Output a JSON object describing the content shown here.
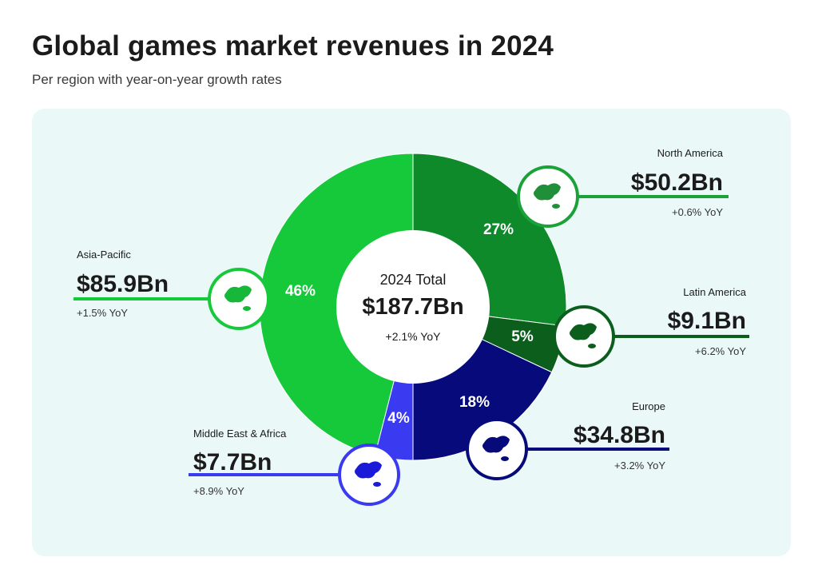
{
  "header": {
    "title": "Global games market revenues in 2024",
    "subtitle": "Per region with year-on-year growth rates"
  },
  "chart_data": {
    "type": "pie",
    "title": "Global games market revenues in 2024",
    "subtitle": "Per region with year-on-year growth rates",
    "center": {
      "label": "2024 Total",
      "value": "$187.7Bn",
      "growth": "+2.1% YoY"
    },
    "slices": [
      {
        "region": "North America",
        "percent": 27,
        "percent_label": "27%",
        "value": 50.2,
        "value_label": "$50.2Bn",
        "growth": "+0.6% YoY",
        "color": "#0f8a2a",
        "icon": "north-america-map-icon"
      },
      {
        "region": "Latin America",
        "percent": 5,
        "percent_label": "5%",
        "value": 9.1,
        "value_label": "$9.1Bn",
        "growth": "+6.2% YoY",
        "color": "#0b5e1c",
        "icon": "latin-america-map-icon"
      },
      {
        "region": "Europe",
        "percent": 18,
        "percent_label": "18%",
        "value": 34.8,
        "value_label": "$34.8Bn",
        "growth": "+3.2% YoY",
        "color": "#060a7a",
        "icon": "europe-map-icon"
      },
      {
        "region": "Middle East & Africa",
        "percent": 4,
        "percent_label": "4%",
        "value": 7.7,
        "value_label": "$7.7Bn",
        "growth": "+8.9% YoY",
        "color": "#3a3af0",
        "icon": "africa-map-icon"
      },
      {
        "region": "Asia-Pacific",
        "percent": 46,
        "percent_label": "46%",
        "value": 85.9,
        "value_label": "$85.9Bn",
        "growth": "+1.5% YoY",
        "color": "#16c93a",
        "icon": "asia-pacific-map-icon"
      }
    ]
  }
}
